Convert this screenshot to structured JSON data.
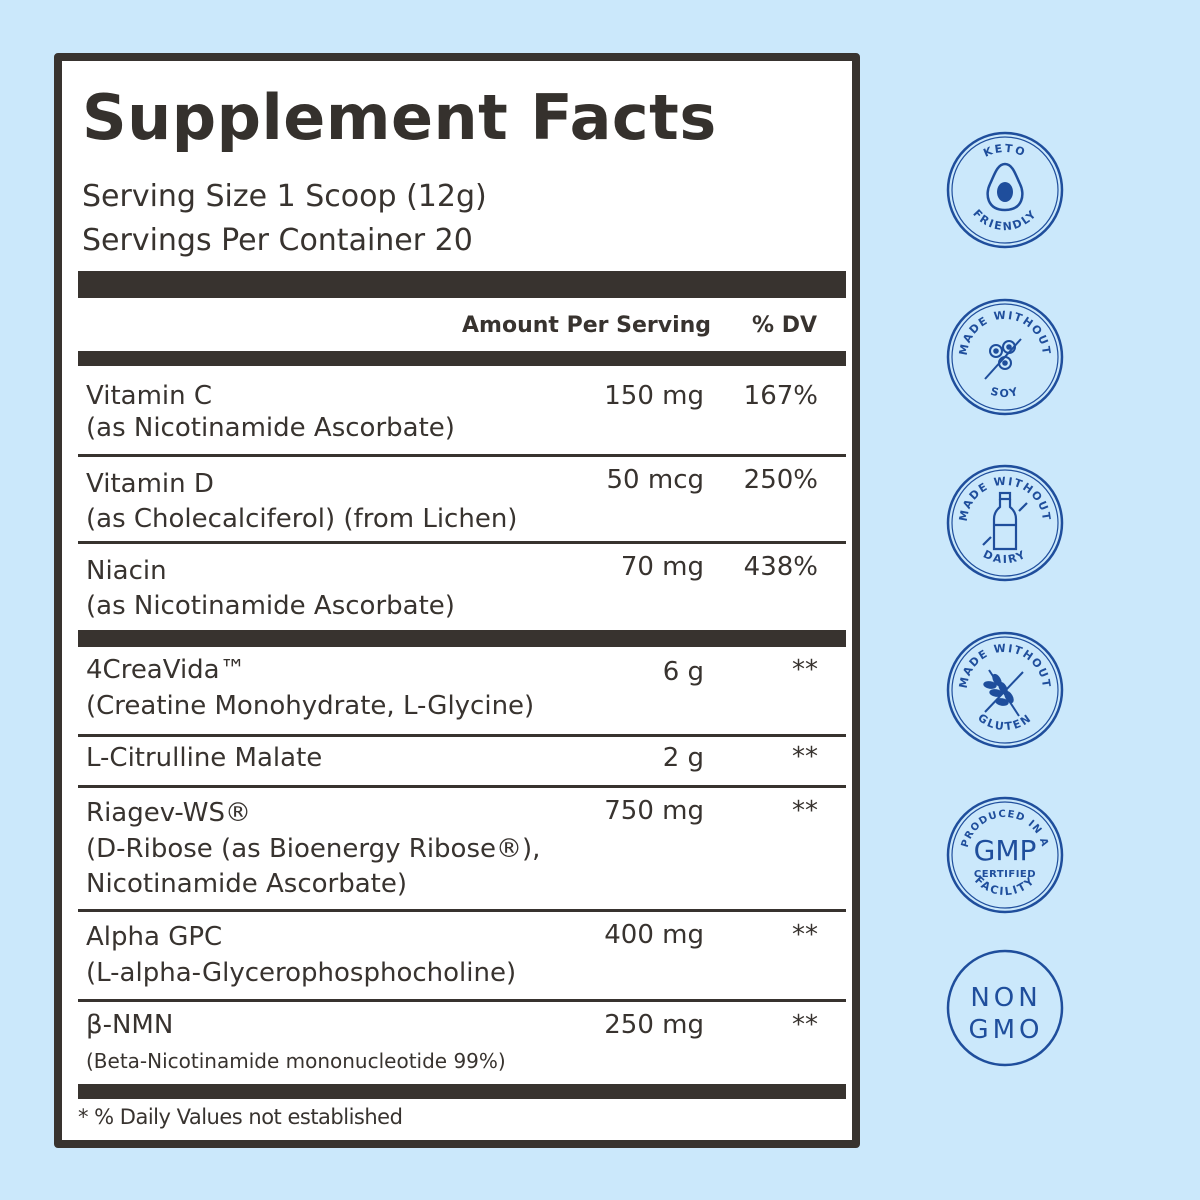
{
  "label": {
    "title": "Supplement Facts",
    "serving_size": "Serving Size 1 Scoop (12g)",
    "servings_per_container": "Servings Per Container 20",
    "col_amount": "Amount Per Serving",
    "col_dv": "% DV",
    "rows": [
      {
        "name": "Vitamin C",
        "sub": "(as Nicotinamide Ascorbate)",
        "amount": "150 mg",
        "dv": "167%"
      },
      {
        "name": "Vitamin D",
        "sub": "(as Cholecalciferol) (from Lichen)",
        "amount": "50 mcg",
        "dv": "250%"
      },
      {
        "name": "Niacin",
        "sub": "(as Nicotinamide Ascorbate)",
        "amount": "70 mg",
        "dv": "438%"
      },
      {
        "name": "4CreaVida™",
        "sub": "(Creatine Monohydrate, L-Glycine)",
        "amount": "6 g",
        "dv": "**"
      },
      {
        "name": "L-Citrulline Malate",
        "sub": "",
        "amount": "2 g",
        "dv": "**"
      },
      {
        "name": "Riagev-WS®",
        "sub": "(D-Ribose (as Bioenergy Ribose®),",
        "sub2": "Nicotinamide Ascorbate)",
        "amount": "750 mg",
        "dv": "**"
      },
      {
        "name": "Alpha GPC",
        "sub": "(L-alpha-Glycerophosphocholine)",
        "amount": "400 mg",
        "dv": "**"
      },
      {
        "name": "β-NMN",
        "sub": "(Beta-Nicotinamide mononucleotide 99%)",
        "amount": "250 mg",
        "dv": "**"
      }
    ],
    "footnote": "* % Daily Values not established"
  },
  "badges": [
    {
      "top": "KETO",
      "bottom": "FRIENDLY",
      "icon": "avocado-icon"
    },
    {
      "top": "MADE WITHOUT",
      "bottom": "SOY",
      "icon": "soybean-icon"
    },
    {
      "top": "MADE WITHOUT",
      "bottom": "DAIRY",
      "icon": "milk-bottle-icon"
    },
    {
      "top": "MADE WITHOUT",
      "bottom": "GLUTEN",
      "icon": "wheat-icon"
    },
    {
      "top": "PRODUCED IN A",
      "center": "GMP",
      "center2": "CERTIFIED",
      "bottom": "FACILITY"
    },
    {
      "line1": "NON",
      "line2": "GMO"
    }
  ],
  "colors": {
    "background": "#cbe8fb",
    "ink": "#38332f",
    "badge": "#1f4e9c"
  }
}
